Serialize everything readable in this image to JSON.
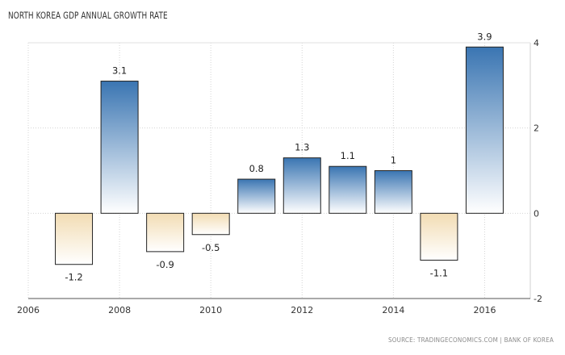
{
  "title": "NORTH KOREA GDP ANNUAL GROWTH RATE",
  "source": "SOURCE: TRADINGECONOMICS.COM | BANK OF KOREA",
  "chart_data": {
    "type": "bar",
    "title": "NORTH KOREA GDP ANNUAL GROWTH RATE",
    "xlabel": "",
    "ylabel": "",
    "x": [
      2007,
      2008,
      2009,
      2010,
      2011,
      2012,
      2013,
      2014,
      2015,
      2016
    ],
    "values": [
      -1.2,
      3.1,
      -0.9,
      -0.5,
      0.8,
      1.3,
      1.1,
      1,
      -1.1,
      3.9
    ],
    "data_labels": [
      "-1.2",
      "3.1",
      "-0.9",
      "-0.5",
      "0.8",
      "1.3",
      "1.1",
      "1",
      "-1.1",
      "3.9"
    ],
    "xlim": [
      2006,
      2017
    ],
    "ylim": [
      -2,
      4
    ],
    "x_ticks": [
      2006,
      2008,
      2010,
      2012,
      2014,
      2016
    ],
    "x_tick_labels": [
      "2006",
      "2008",
      "2010",
      "2012",
      "2014",
      "2016"
    ],
    "y_ticks": [
      -2,
      0,
      2,
      4
    ],
    "y_tick_labels": [
      "-2",
      "0",
      "2",
      "4"
    ],
    "y_axis_side": "right",
    "grid": true,
    "legend": "none",
    "colors": {
      "positive_top": "#3a75b2",
      "positive_bottom": "#ffffff",
      "negative_top": "#f2dcb3",
      "negative_bottom": "#ffffff",
      "bar_border": "#222222",
      "grid": "#d4d4d4",
      "axis_text": "#333333"
    }
  }
}
